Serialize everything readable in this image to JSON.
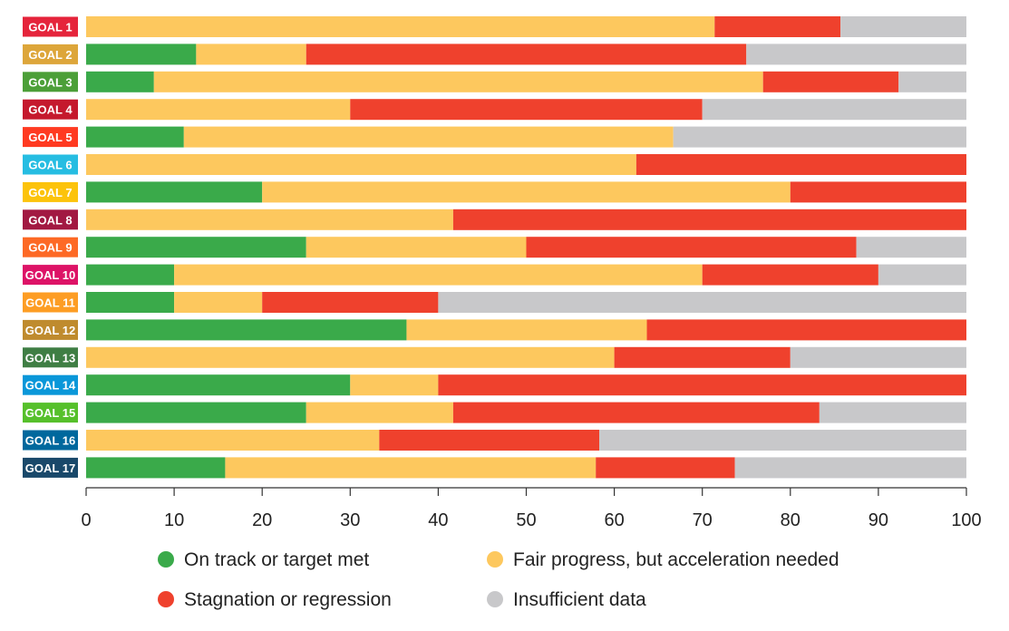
{
  "chart_data": {
    "type": "bar",
    "orientation": "horizontal",
    "stacked": true,
    "categories": [
      "GOAL 1",
      "GOAL 2",
      "GOAL 3",
      "GOAL 4",
      "GOAL 5",
      "GOAL 6",
      "GOAL 7",
      "GOAL 8",
      "GOAL 9",
      "GOAL 10",
      "GOAL 11",
      "GOAL 12",
      "GOAL 13",
      "GOAL 14",
      "GOAL 15",
      "GOAL 16",
      "GOAL 17"
    ],
    "category_colors": [
      "#e5243b",
      "#dda63a",
      "#4c9f38",
      "#c5192d",
      "#ff3a21",
      "#26bde2",
      "#fcc30b",
      "#a21942",
      "#fd6925",
      "#dd1367",
      "#fd9d24",
      "#bf8b2e",
      "#3f7e44",
      "#0a97d9",
      "#56c02b",
      "#00689d",
      "#19486a"
    ],
    "series": [
      {
        "name": "On track or target met",
        "color": "#3aaa4a",
        "values": [
          0,
          12.5,
          7.7,
          0,
          11.1,
          0,
          20,
          0,
          25,
          10,
          10,
          36.4,
          0,
          30,
          25,
          0,
          15.8
        ]
      },
      {
        "name": "Fair progress, but acceleration needed",
        "color": "#fdc85e",
        "values": [
          71.4,
          12.5,
          69.2,
          30,
          55.6,
          62.5,
          60,
          41.7,
          25,
          60,
          10,
          27.3,
          60,
          10,
          16.7,
          33.3,
          42.1
        ]
      },
      {
        "name": "Stagnation or regression",
        "color": "#ef412d",
        "values": [
          14.3,
          50,
          15.4,
          40,
          0,
          37.5,
          20,
          58.3,
          37.5,
          20,
          20,
          36.3,
          20,
          60,
          41.6,
          25,
          15.8
        ]
      },
      {
        "name": "Insufficient data",
        "color": "#c8c8ca",
        "values": [
          14.3,
          25,
          7.7,
          30,
          33.3,
          0,
          0,
          0,
          12.5,
          10,
          60,
          0,
          20,
          0,
          16.7,
          41.7,
          26.3
        ]
      }
    ],
    "xlim": [
      0,
      100
    ],
    "xticks": [
      "0",
      "10",
      "20",
      "30",
      "40",
      "50",
      "60",
      "70",
      "80",
      "90",
      "100"
    ],
    "legend": [
      {
        "label": "On track or target met",
        "color": "#3aaa4a"
      },
      {
        "label": "Fair progress, but acceleration needed",
        "color": "#fdc85e"
      },
      {
        "label": "Stagnation or regression",
        "color": "#ef412d"
      },
      {
        "label": "Insufficient data",
        "color": "#c8c8ca"
      }
    ],
    "legend_position": "bottom",
    "title": "",
    "xlabel": "",
    "ylabel": ""
  }
}
